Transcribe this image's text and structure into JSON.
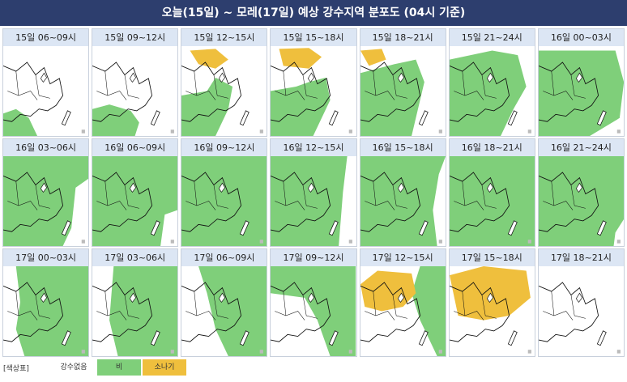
{
  "header": {
    "title": "오늘(15일) ~ 모레(17일) 예상 강수지역 분포도 (04시 기준)"
  },
  "panels": [
    "15일 06~09시",
    "15일 09~12시",
    "15일 12~15시",
    "15일 15~18시",
    "15일 18~21시",
    "15일 21~24시",
    "16일 00~03시",
    "16일 03~06시",
    "16일 06~09시",
    "16일 09~12시",
    "16일 12~15시",
    "16일 15~18시",
    "16일 18~21시",
    "16일 21~24시",
    "17일 00~03시",
    "17일 03~06시",
    "17일 06~09시",
    "17일 09~12시",
    "17일 12~15시",
    "17일 15~18시",
    "17일 18~21시"
  ],
  "legend": {
    "label": "[색상표]",
    "items": [
      "강수없음",
      "비",
      "소나기"
    ]
  }
}
